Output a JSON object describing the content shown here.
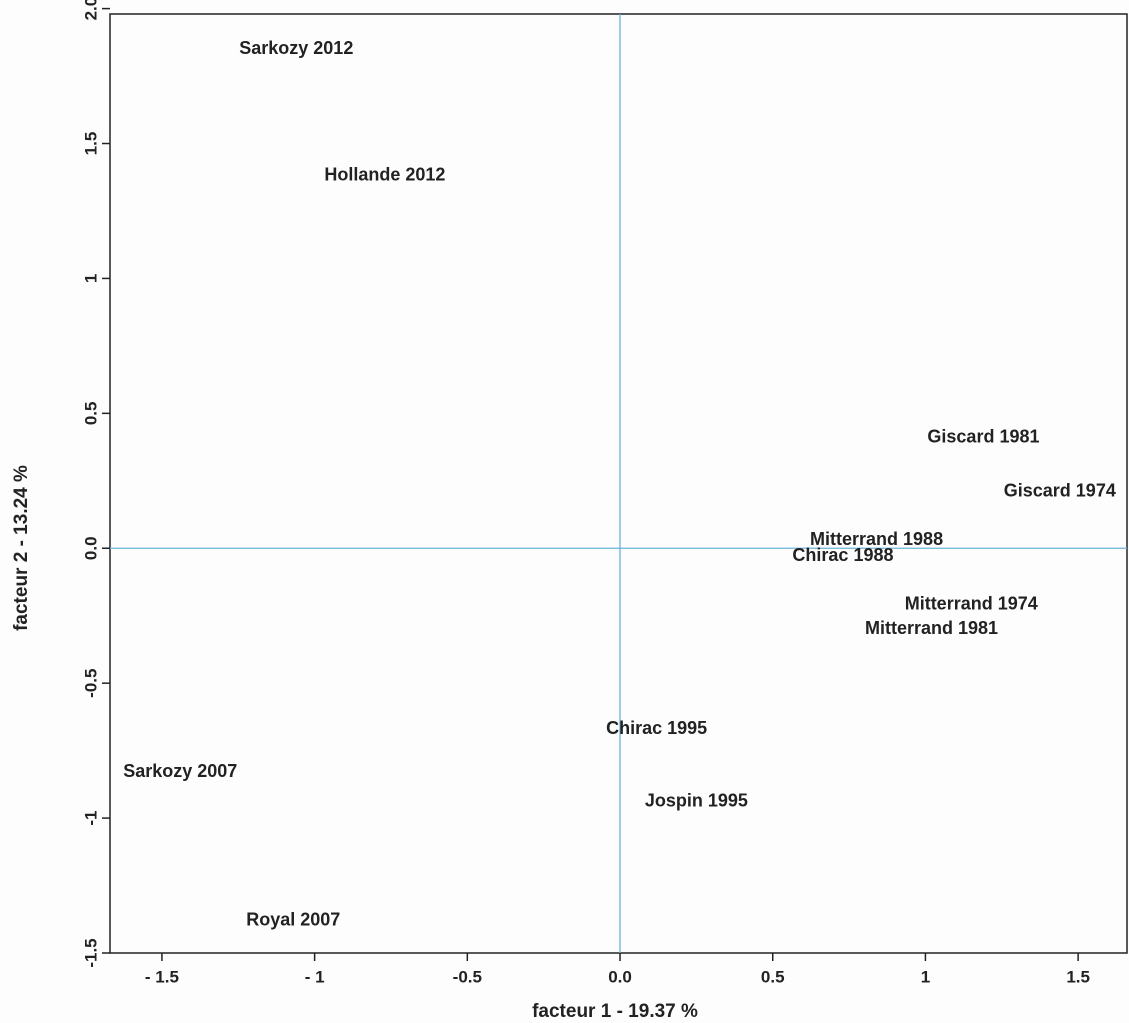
{
  "chart_data": {
    "type": "scatter",
    "x_label": "facteur 1 - 19.37 %",
    "y_label": "facteur 2 - 13.24 %",
    "labels": [
      "Sarkozy 2012",
      "Hollande 2012",
      "Giscard 1981",
      "Giscard 1974",
      "Mitterrand 1988",
      "Chirac 1988",
      "Mitterrand 1974",
      "Mitterrand 1981",
      "Chirac 1995",
      "Jospin 1995",
      "Sarkozy 2007",
      "Royal 2007"
    ],
    "x": [
      -1.06,
      -0.77,
      1.19,
      1.44,
      0.84,
      0.73,
      1.15,
      1.02,
      0.12,
      0.25,
      -1.44,
      -1.07
    ],
    "values": [
      1.85,
      1.38,
      0.41,
      0.21,
      0.03,
      -0.03,
      -0.21,
      -0.3,
      -0.67,
      -0.94,
      -0.83,
      -1.38
    ],
    "xlim": [
      -1.67,
      1.66
    ],
    "ylim": [
      -1.5,
      1.98
    ],
    "xticks": [
      {
        "value": -1.5,
        "label": "- 1.5"
      },
      {
        "value": -1,
        "label": "- 1"
      },
      {
        "value": -0.5,
        "label": "-0.5"
      },
      {
        "value": 0,
        "label": "0.0"
      },
      0.5,
      1,
      1.5
    ],
    "yticks": [
      -1.5,
      -1,
      -0.5,
      {
        "value": 0,
        "label": "0.0"
      },
      0.5,
      1,
      1.5,
      {
        "value": 2,
        "label": "2.0"
      }
    ],
    "reference_color": "#6ab4d8"
  }
}
